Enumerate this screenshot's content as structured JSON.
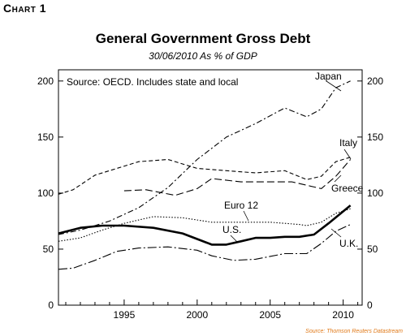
{
  "header": {
    "label": "Chart 1",
    "title": "General Government Gross Debt",
    "subtitle": "30/06/2010 As % of GDP"
  },
  "colors": {
    "lines": "#000000",
    "source": "#e07a1a"
  },
  "chart_data": {
    "type": "line",
    "title": "General Government Gross Debt",
    "subtitle": "30/06/2010 As % of GDP",
    "xlabel": "",
    "ylabel": "",
    "xlim": [
      1990.5,
      2011.3
    ],
    "ylim": [
      0,
      210
    ],
    "x_ticks": [
      "1995",
      "2000",
      "2005",
      "2010"
    ],
    "x_tick_values": [
      1995,
      2000,
      2005,
      2010
    ],
    "y_ticks": [
      "0",
      "50",
      "100",
      "150",
      "200"
    ],
    "y_tick_values": [
      0,
      50,
      100,
      150,
      200
    ],
    "y_axis_both_sides": true,
    "grid": false,
    "note": "Source: OECD. Includes state and local",
    "source": "Source: Thomson Reuters Datastream",
    "series": [
      {
        "name": "Japan",
        "style": "dash-dot",
        "x": [
          1990.5,
          1992,
          1994,
          1996,
          1998,
          2000,
          2002,
          2004,
          2006,
          2007.5,
          2008.5,
          2009.5,
          2010.5
        ],
        "y": [
          63,
          67,
          75,
          87,
          105,
          130,
          150,
          162,
          176,
          168,
          175,
          194,
          200
        ]
      },
      {
        "name": "Italy",
        "style": "dashed",
        "x": [
          1990.5,
          1991.5,
          1993,
          1994.5,
          1996,
          1998,
          2000,
          2002,
          2004,
          2006,
          2007.5,
          2008.5,
          2009.5,
          2010.5
        ],
        "y": [
          99,
          103,
          116,
          122,
          128,
          130,
          122,
          120,
          118,
          120,
          112,
          115,
          128,
          132
        ]
      },
      {
        "name": "Greece",
        "style": "long-dash",
        "x": [
          1995,
          1996.5,
          1998.5,
          2000,
          2001,
          2003,
          2005,
          2006.5,
          2008.5,
          2009.5,
          2010.5
        ],
        "y": [
          102,
          103,
          98,
          104,
          113,
          110,
          110,
          110,
          104,
          115,
          130
        ]
      },
      {
        "name": "Euro 12",
        "style": "dotted",
        "x": [
          1990.5,
          1992,
          1993.5,
          1995,
          1997,
          1999,
          2001,
          2003,
          2005,
          2007,
          2007.5,
          2008.5,
          2009.5,
          2010.5
        ],
        "y": [
          57,
          60,
          67,
          73,
          79,
          78,
          74,
          74,
          74,
          72,
          71,
          74,
          82,
          86
        ]
      },
      {
        "name": "U.S.",
        "style": "solid-bold",
        "x": [
          1990.5,
          1992,
          1993.5,
          1995,
          1997,
          1999,
          2000,
          2001,
          2002,
          2003,
          2004,
          2005,
          2006,
          2007,
          2008,
          2009,
          2010.5
        ],
        "y": [
          64,
          69,
          71,
          71,
          69,
          64,
          59,
          54,
          54,
          57,
          60,
          60,
          61,
          61,
          63,
          73,
          89
        ]
      },
      {
        "name": "U.K.",
        "style": "dash-dot-long",
        "x": [
          1990.5,
          1991.5,
          1993,
          1994.5,
          1996,
          1998,
          2000,
          2001,
          2002.5,
          2004,
          2006,
          2007.5,
          2008.5,
          2009.5,
          2010.5
        ],
        "y": [
          32,
          33,
          40,
          48,
          51,
          52,
          49,
          44,
          40,
          41,
          46,
          46,
          55,
          66,
          72
        ]
      }
    ],
    "series_label_text": [
      "Japan",
      "Italy",
      "Greece",
      "Euro 12",
      "U.S.",
      "U.K."
    ]
  }
}
